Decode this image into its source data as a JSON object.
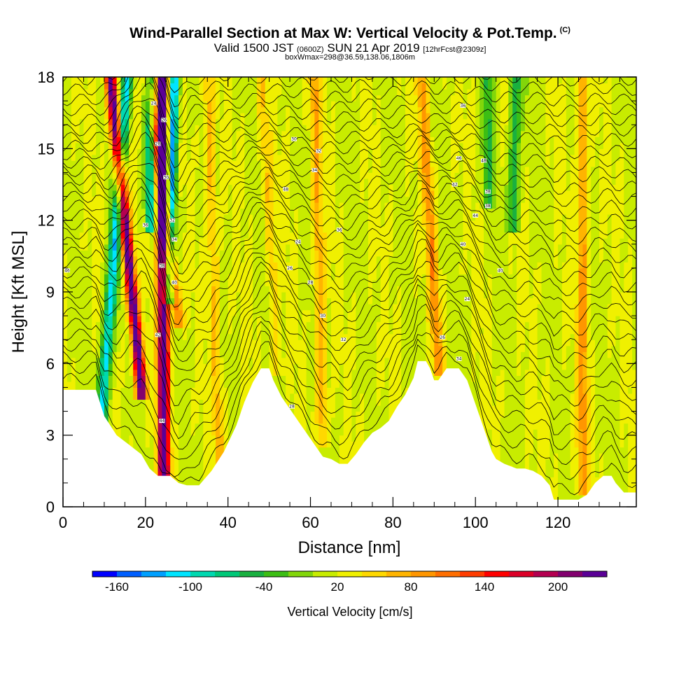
{
  "header": {
    "title": "Wind-Parallel Section at Max W: Vertical Velocity & Pot.Temp.",
    "title_mark": "(C)",
    "valid_prefix": "Valid 1500 JST",
    "valid_utc": "(0600Z)",
    "valid_date": "SUN 21 Apr 2019",
    "forecast": "[12hrFcst@2309z]",
    "box_info": "boxWmax=298@36.59,138.06,1806m"
  },
  "chart_data": {
    "type": "heatmap",
    "xlabel": "Distance [nm]",
    "ylabel": "Height [Kft MSL]",
    "xlim": [
      0,
      139
    ],
    "ylim": [
      0,
      18
    ],
    "x_ticks": [
      0,
      20,
      40,
      60,
      80,
      100,
      120
    ],
    "y_ticks": [
      0,
      3,
      6,
      9,
      12,
      15,
      18
    ],
    "colorbar": {
      "title": "Vertical Velocity [cm/s]",
      "levels": [
        -180,
        -160,
        -140,
        -120,
        -100,
        -80,
        -60,
        -40,
        -20,
        0,
        20,
        40,
        60,
        80,
        100,
        120,
        140,
        160,
        180,
        200,
        220,
        240
      ],
      "colors": [
        "#0000ff",
        "#005fff",
        "#00a0ff",
        "#00e4ff",
        "#00d8b0",
        "#00c878",
        "#19b040",
        "#3cbe14",
        "#82d60a",
        "#c8ec00",
        "#f0f000",
        "#ffd800",
        "#ffb400",
        "#ff9600",
        "#ff6e00",
        "#ff3c00",
        "#ff0000",
        "#dc0028",
        "#b40050",
        "#82006e",
        "#5a0096"
      ],
      "tick_labels": [
        "-160",
        "-100",
        "-40",
        "20",
        "80",
        "140",
        "200"
      ]
    },
    "contour_labels": [
      "24",
      "26",
      "28",
      "30",
      "32",
      "34",
      "36",
      "38",
      "40",
      "42",
      "44",
      "46",
      "48"
    ],
    "terrain_kft": [
      [
        0,
        4.9
      ],
      [
        4,
        4.9
      ],
      [
        8,
        4.9
      ],
      [
        10,
        3.8
      ],
      [
        13,
        3.0
      ],
      [
        16,
        2.6
      ],
      [
        19,
        2.2
      ],
      [
        21,
        1.6
      ],
      [
        23,
        1.3
      ],
      [
        26,
        1.3
      ],
      [
        28,
        1.0
      ],
      [
        30,
        0.9
      ],
      [
        33,
        0.9
      ],
      [
        36,
        1.5
      ],
      [
        39,
        2.3
      ],
      [
        42,
        3.4
      ],
      [
        44,
        4.4
      ],
      [
        46,
        5.2
      ],
      [
        48,
        5.8
      ],
      [
        50,
        5.8
      ],
      [
        51,
        5.3
      ],
      [
        53,
        4.6
      ],
      [
        55,
        4.1
      ],
      [
        57,
        3.6
      ],
      [
        59,
        3.1
      ],
      [
        61,
        2.6
      ],
      [
        63,
        2.1
      ],
      [
        65,
        2.0
      ],
      [
        67,
        1.8
      ],
      [
        69,
        1.8
      ],
      [
        71,
        2.2
      ],
      [
        73,
        2.7
      ],
      [
        75,
        3.1
      ],
      [
        77,
        3.3
      ],
      [
        79,
        3.6
      ],
      [
        81,
        4.2
      ],
      [
        83,
        4.7
      ],
      [
        85,
        5.4
      ],
      [
        86,
        6.1
      ],
      [
        88,
        6.1
      ],
      [
        89,
        5.8
      ],
      [
        90,
        5.3
      ],
      [
        91,
        5.3
      ],
      [
        93,
        5.8
      ],
      [
        95,
        5.8
      ],
      [
        96,
        5.8
      ],
      [
        98,
        5.3
      ],
      [
        99,
        4.8
      ],
      [
        100,
        4.3
      ],
      [
        101,
        3.8
      ],
      [
        102,
        3.3
      ],
      [
        103,
        2.8
      ],
      [
        104,
        2.3
      ],
      [
        105,
        2.0
      ],
      [
        107,
        1.8
      ],
      [
        110,
        1.6
      ],
      [
        112,
        1.6
      ],
      [
        114,
        1.5
      ],
      [
        116,
        1.3
      ],
      [
        118,
        0.9
      ],
      [
        119,
        0.3
      ],
      [
        122,
        0.3
      ],
      [
        125,
        0.3
      ],
      [
        127,
        0.5
      ],
      [
        129,
        1.0
      ],
      [
        131,
        1.3
      ],
      [
        133,
        1.3
      ],
      [
        134,
        1.0
      ],
      [
        136,
        0.6
      ],
      [
        139,
        0.6
      ]
    ],
    "updraft_bands": [
      {
        "x_top": 11.5,
        "x_bottom": 19.0,
        "y_bottom": 5.0,
        "w": 240
      },
      {
        "x_top": 24.0,
        "x_bottom": 24.5,
        "y_bottom": 1.0,
        "w": 260
      },
      {
        "x_top": 20.5,
        "x_bottom": 28.0,
        "y_bottom": 8.0,
        "w": 100
      },
      {
        "x_top": 35.0,
        "x_bottom": 38.0,
        "y_bottom": 2.0,
        "w": 50
      },
      {
        "x_top": 48.0,
        "x_bottom": 52.0,
        "y_bottom": 6.0,
        "w": 40
      },
      {
        "x_top": 61.0,
        "x_bottom": 63.0,
        "y_bottom": 3.0,
        "w": 60
      },
      {
        "x_top": 87.0,
        "x_bottom": 91.0,
        "y_bottom": 6.0,
        "w": 70
      },
      {
        "x_top": 126.0,
        "x_bottom": 126.0,
        "y_bottom": 1.0,
        "w": 70
      }
    ],
    "downdraft_bands": [
      {
        "x_top": 15.5,
        "x_bottom": 9.5,
        "y_bottom": 4.0,
        "w": -140
      },
      {
        "x_top": 27.0,
        "x_bottom": 25.5,
        "y_bottom": 9.0,
        "w": -150
      },
      {
        "x_top": 21.0,
        "x_bottom": 21.0,
        "y_bottom": 12.0,
        "w": -120
      },
      {
        "x_top": 110.0,
        "x_bottom": 109.0,
        "y_bottom": 12.0,
        "w": -80
      },
      {
        "x_top": 103.0,
        "x_bottom": 103.0,
        "y_bottom": 13.0,
        "w": -60
      }
    ]
  }
}
